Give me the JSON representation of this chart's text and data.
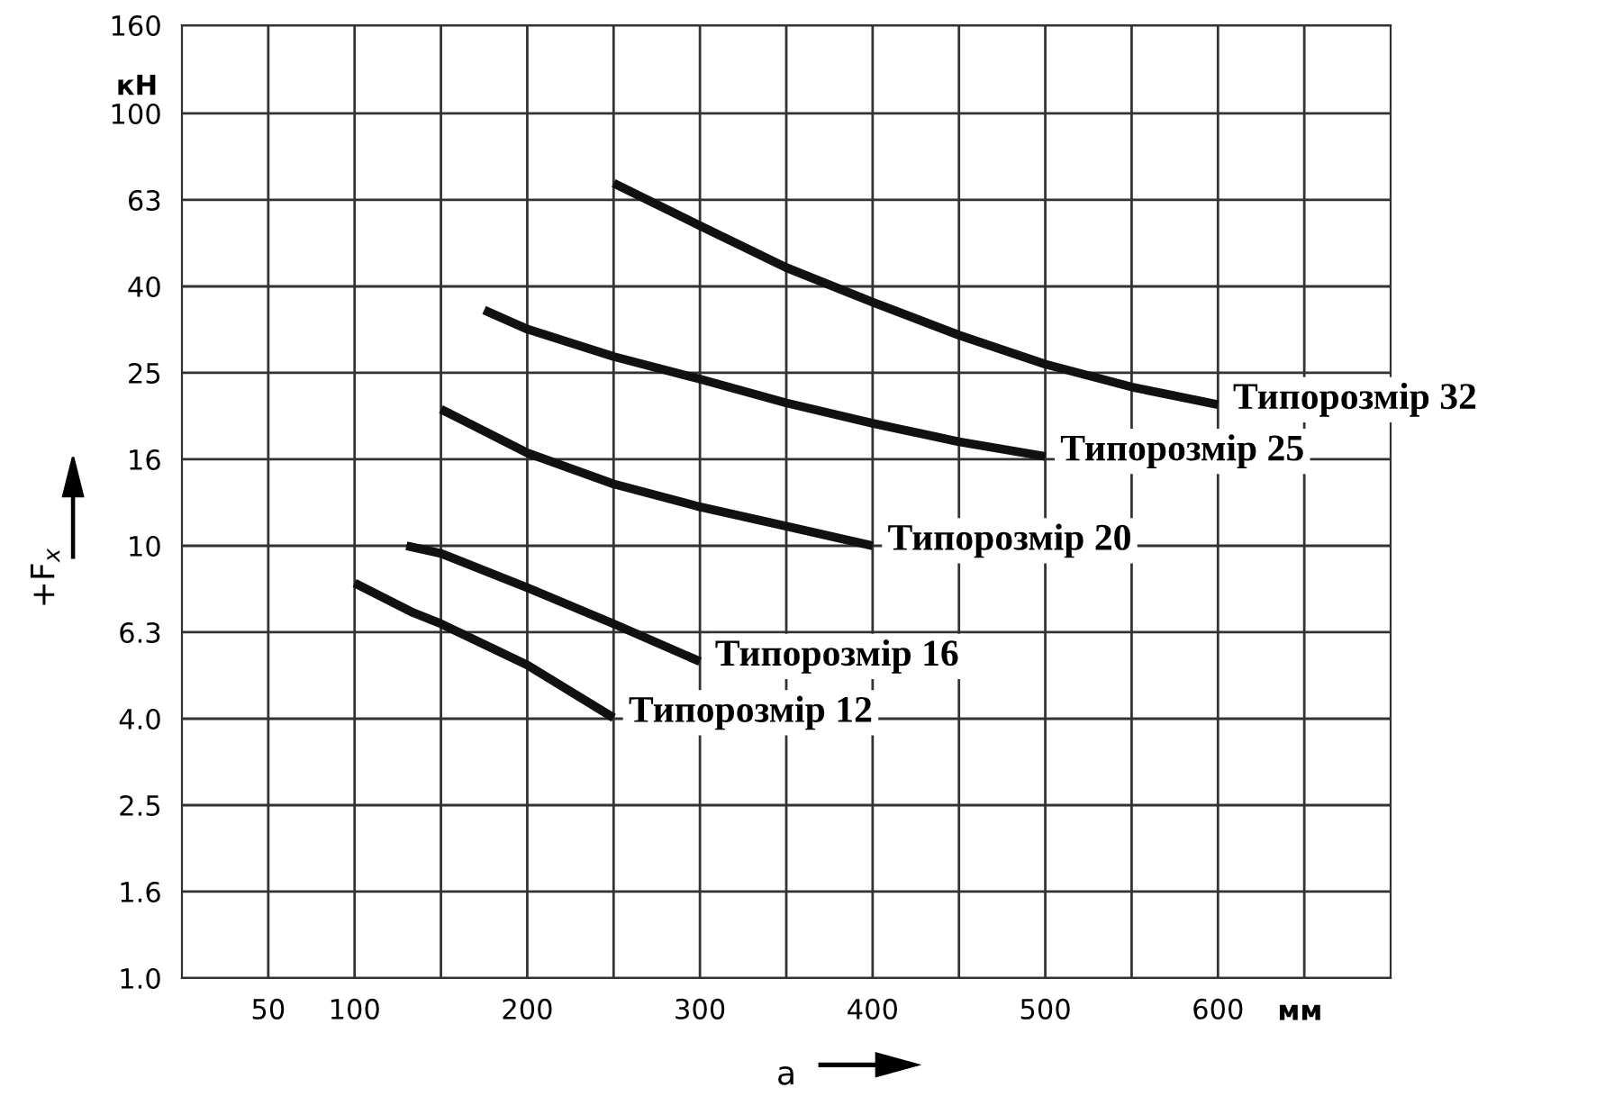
{
  "chart_data": {
    "type": "line",
    "xlabel": "a",
    "ylabel": "+F$_{x}$",
    "annotations": [
      "кН",
      "мм"
    ],
    "series": [
      {
        "name": "Типорозмір 32",
        "color": "#111111",
        "x": [
          250,
          300,
          350,
          400,
          450,
          500,
          550,
          600
        ],
        "values": [
          69,
          55,
          44,
          36.6,
          30.7,
          26.3,
          23.3,
          21.2
        ]
      },
      {
        "name": "Типорозмір 25",
        "color": "#111111",
        "x": [
          175,
          200,
          250,
          300,
          350,
          400,
          450,
          500
        ],
        "values": [
          35.1,
          31.7,
          27.4,
          24.3,
          21.4,
          19.2,
          17.4,
          16.1
        ]
      },
      {
        "name": "Типорозмір 20",
        "color": "#111111",
        "x": [
          150,
          200,
          250,
          300,
          350,
          400
        ],
        "values": [
          20.7,
          16.4,
          13.9,
          12.3,
          11.1,
          10.0
        ]
      },
      {
        "name": "Типорозмір 16",
        "color": "#111111",
        "x": [
          130,
          150,
          200,
          250,
          300
        ],
        "values": [
          10.0,
          9.6,
          8.0,
          6.6,
          5.4
        ]
      },
      {
        "name": "Типорозмір 12",
        "color": "#111111",
        "x": [
          100,
          134,
          150,
          200,
          250
        ],
        "values": [
          8.2,
          7.0,
          6.6,
          5.3,
          4.0
        ]
      }
    ],
    "xlim": [
      0,
      700
    ],
    "xticks": [
      50,
      100,
      {
        "value": 150,
        "label": null
      },
      200,
      {
        "value": 250,
        "label": null
      },
      300,
      {
        "value": 350,
        "label": null
      },
      400,
      {
        "value": 450,
        "label": null
      },
      500,
      {
        "value": 550,
        "label": null
      },
      600,
      {
        "value": 650,
        "label": null
      }
    ],
    "log": "y",
    "ylim": [
      1,
      160
    ],
    "yticks": [
      {
        "value": 1,
        "label": "1.0"
      },
      {
        "value": 1.585,
        "label": "1.6"
      },
      {
        "value": 2.512,
        "label": "2.5"
      },
      {
        "value": 3.981,
        "label": "4.0"
      },
      {
        "value": 6.31,
        "label": "6.3"
      },
      10,
      {
        "value": 15.85,
        "label": "16"
      },
      {
        "value": 25.12,
        "label": "25"
      },
      {
        "value": 39.81,
        "label": "40"
      },
      {
        "value": 63.1,
        "label": "63"
      },
      100,
      160
    ],
    "grid": true,
    "legend": false,
    "marker": "none",
    "line_style": "solid"
  }
}
